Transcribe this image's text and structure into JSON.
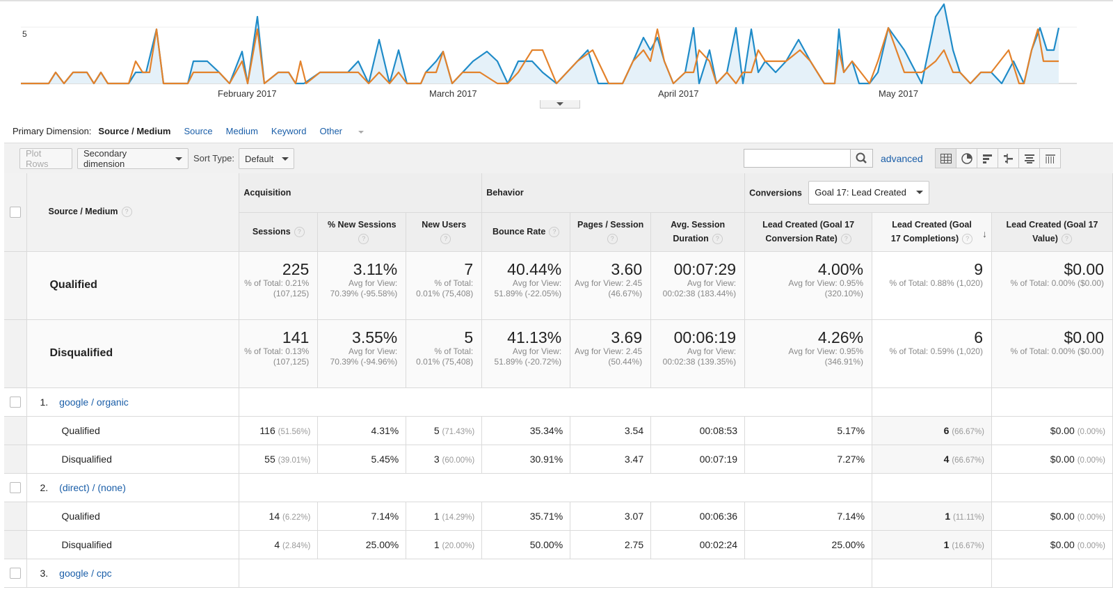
{
  "chart": {
    "y_tick": "5",
    "months": [
      "February 2017",
      "March 2017",
      "April 2017",
      "May 2017"
    ],
    "colors": {
      "blue": "#1f8bc8",
      "orange": "#e3822b",
      "fill": "#e5f1f9"
    }
  },
  "primary_dimension": {
    "label": "Primary Dimension:",
    "active": "Source / Medium",
    "options": [
      "Source",
      "Medium",
      "Keyword",
      "Other"
    ]
  },
  "toolbar": {
    "plot_rows": "Plot Rows",
    "secondary_dimension": "Secondary dimension",
    "sort_label": "Sort Type:",
    "sort_value": "Default",
    "search_value": "",
    "advanced": "advanced"
  },
  "table": {
    "dimension_header": "Source / Medium",
    "groups": {
      "acquisition": "Acquisition",
      "behavior": "Behavior",
      "conversions": "Conversions",
      "goal_select": "Goal 17: Lead Created"
    },
    "columns": [
      "Sessions",
      "% New Sessions",
      "New Users",
      "Bounce Rate",
      "Pages / Session",
      "Avg. Session Duration",
      "Lead Created (Goal 17 Conversion Rate)",
      "Lead Created (Goal 17 Completions)",
      "Lead Created (Goal 17 Value)"
    ],
    "totals": [
      {
        "segment": "Qualified",
        "cells": [
          {
            "value": "225",
            "sub": "% of Total: 0.21% (107,125)"
          },
          {
            "value": "3.11%",
            "sub": "Avg for View: 70.39% (-95.58%)"
          },
          {
            "value": "7",
            "sub": "% of Total: 0.01% (75,408)"
          },
          {
            "value": "40.44%",
            "sub": "Avg for View: 51.89% (-22.05%)"
          },
          {
            "value": "3.60",
            "sub": "Avg for View: 2.45 (46.67%)"
          },
          {
            "value": "00:07:29",
            "sub": "Avg for View: 00:02:38 (183.44%)"
          },
          {
            "value": "4.00%",
            "sub": "Avg for View: 0.95% (320.10%)"
          },
          {
            "value": "9",
            "sub": "% of Total: 0.88% (1,020)"
          },
          {
            "value": "$0.00",
            "sub": "% of Total: 0.00% ($0.00)"
          }
        ]
      },
      {
        "segment": "Disqualified",
        "cells": [
          {
            "value": "141",
            "sub": "% of Total: 0.13% (107,125)"
          },
          {
            "value": "3.55%",
            "sub": "Avg for View: 70.39% (-94.96%)"
          },
          {
            "value": "5",
            "sub": "% of Total: 0.01% (75,408)"
          },
          {
            "value": "41.13%",
            "sub": "Avg for View: 51.89% (-20.72%)"
          },
          {
            "value": "3.69",
            "sub": "Avg for View: 2.45 (50.44%)"
          },
          {
            "value": "00:06:19",
            "sub": "Avg for View: 00:02:38 (139.35%)"
          },
          {
            "value": "4.26%",
            "sub": "Avg for View: 0.95% (346.91%)"
          },
          {
            "value": "6",
            "sub": "% of Total: 0.59% (1,020)"
          },
          {
            "value": "$0.00",
            "sub": "% of Total: 0.00% ($0.00)"
          }
        ]
      }
    ],
    "rows": [
      {
        "index": "1.",
        "name": "google / organic",
        "segments": [
          {
            "label": "Qualified",
            "sessions": "116",
            "sessions_pct": "(51.56%)",
            "new_sessions": "4.31%",
            "new_users": "5",
            "new_users_pct": "(71.43%)",
            "bounce": "35.34%",
            "pages": "3.54",
            "duration": "00:08:53",
            "conv_rate": "5.17%",
            "completions": "6",
            "completions_pct": "(66.67%)",
            "value": "$0.00",
            "value_pct": "(0.00%)"
          },
          {
            "label": "Disqualified",
            "sessions": "55",
            "sessions_pct": "(39.01%)",
            "new_sessions": "5.45%",
            "new_users": "3",
            "new_users_pct": "(60.00%)",
            "bounce": "30.91%",
            "pages": "3.47",
            "duration": "00:07:19",
            "conv_rate": "7.27%",
            "completions": "4",
            "completions_pct": "(66.67%)",
            "value": "$0.00",
            "value_pct": "(0.00%)"
          }
        ]
      },
      {
        "index": "2.",
        "name": "(direct) / (none)",
        "segments": [
          {
            "label": "Qualified",
            "sessions": "14",
            "sessions_pct": "(6.22%)",
            "new_sessions": "7.14%",
            "new_users": "1",
            "new_users_pct": "(14.29%)",
            "bounce": "35.71%",
            "pages": "3.07",
            "duration": "00:06:36",
            "conv_rate": "7.14%",
            "completions": "1",
            "completions_pct": "(11.11%)",
            "value": "$0.00",
            "value_pct": "(0.00%)"
          },
          {
            "label": "Disqualified",
            "sessions": "4",
            "sessions_pct": "(2.84%)",
            "new_sessions": "25.00%",
            "new_users": "1",
            "new_users_pct": "(20.00%)",
            "bounce": "50.00%",
            "pages": "2.75",
            "duration": "00:02:24",
            "conv_rate": "25.00%",
            "completions": "1",
            "completions_pct": "(16.67%)",
            "value": "$0.00",
            "value_pct": "(0.00%)"
          }
        ]
      },
      {
        "index": "3.",
        "name": "google / cpc",
        "segments": []
      }
    ]
  }
}
